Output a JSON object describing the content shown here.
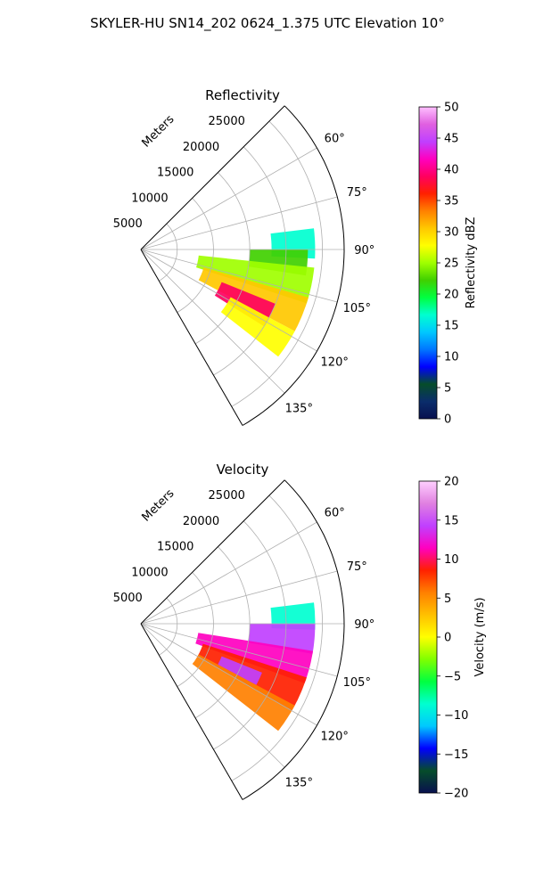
{
  "suptitle": "SKYLER-HU  SN14_202  0624_1.375 UTC Elevation 10°",
  "colors": {
    "reflectivity_stops": [
      "#08104f",
      "#0a2d6b",
      "#064d2a",
      "#0000ff",
      "#0077ff",
      "#00c8ff",
      "#00ffd0",
      "#00ff40",
      "#40d000",
      "#a0ff00",
      "#ffff00",
      "#ffc800",
      "#ff8000",
      "#ff2000",
      "#ff0060",
      "#ff00c0",
      "#c040ff",
      "#e060e0",
      "#ffc0ff"
    ],
    "velocity_stops": [
      "#08104f",
      "#064d2a",
      "#0000ff",
      "#00c8ff",
      "#00ffd0",
      "#00ff40",
      "#80ff00",
      "#ffff00",
      "#ffc000",
      "#ff8000",
      "#ff2000",
      "#ff00c0",
      "#c040ff",
      "#e080e0",
      "#ffd0ff"
    ]
  },
  "chart_data": [
    {
      "type": "heatmap",
      "subtype": "polar-sector",
      "title": "Reflectivity",
      "radial_label": "Meters",
      "radial_ticks": [
        "5000",
        "10000",
        "15000",
        "20000",
        "25000"
      ],
      "r_max": 28000,
      "theta_min": 45,
      "theta_max": 150,
      "theta_ticks": [
        "60°",
        "75°",
        "90°",
        "105°",
        "120°",
        "135°"
      ],
      "colorbar": {
        "label": "Reflectivity dBZ",
        "min": 0,
        "max": 50,
        "ticks": [
          "0",
          "5",
          "10",
          "15",
          "20",
          "25",
          "30",
          "35",
          "40",
          "45",
          "50"
        ]
      },
      "echo_regions": [
        {
          "theta": [
            83,
            93
          ],
          "r": [
            18000,
            24000
          ],
          "value": 17
        },
        {
          "theta": [
            90,
            99
          ],
          "r": [
            15000,
            23000
          ],
          "value": 22
        },
        {
          "theta": [
            96,
            108
          ],
          "r": [
            8000,
            24000
          ],
          "value": 26
        },
        {
          "theta": [
            106,
            118
          ],
          "r": [
            9000,
            24000
          ],
          "value": 30
        },
        {
          "theta": [
            112,
            122
          ],
          "r": [
            12000,
            20000
          ],
          "value": 38
        },
        {
          "theta": [
            118,
            128
          ],
          "r": [
            14000,
            24000
          ],
          "value": 27
        }
      ],
      "grid": true
    },
    {
      "type": "heatmap",
      "subtype": "polar-sector",
      "title": "Velocity",
      "radial_label": "Meters",
      "radial_ticks": [
        "5000",
        "10000",
        "15000",
        "20000",
        "25000"
      ],
      "r_max": 28000,
      "theta_min": 45,
      "theta_max": 150,
      "theta_ticks": [
        "60°",
        "75°",
        "90°",
        "105°",
        "120°",
        "135°"
      ],
      "colorbar": {
        "label": "Velocity (m/s)",
        "min": -20,
        "max": 20,
        "ticks": [
          "−20",
          "−15",
          "−10",
          "−5",
          "0",
          "5",
          "10",
          "15",
          "20"
        ]
      },
      "echo_regions": [
        {
          "theta": [
            83,
            92
          ],
          "r": [
            18000,
            24000
          ],
          "value": -10
        },
        {
          "theta": [
            90,
            100
          ],
          "r": [
            15000,
            24000
          ],
          "value": 15
        },
        {
          "theta": [
            99,
            110
          ],
          "r": [
            8000,
            24000
          ],
          "value": 11
        },
        {
          "theta": [
            108,
            120
          ],
          "r": [
            9000,
            24000
          ],
          "value": 8
        },
        {
          "theta": [
            112,
            118
          ],
          "r": [
            12000,
            18000
          ],
          "value": 13
        },
        {
          "theta": [
            118,
            128
          ],
          "r": [
            9000,
            24000
          ],
          "value": 6
        }
      ],
      "grid": true
    }
  ]
}
